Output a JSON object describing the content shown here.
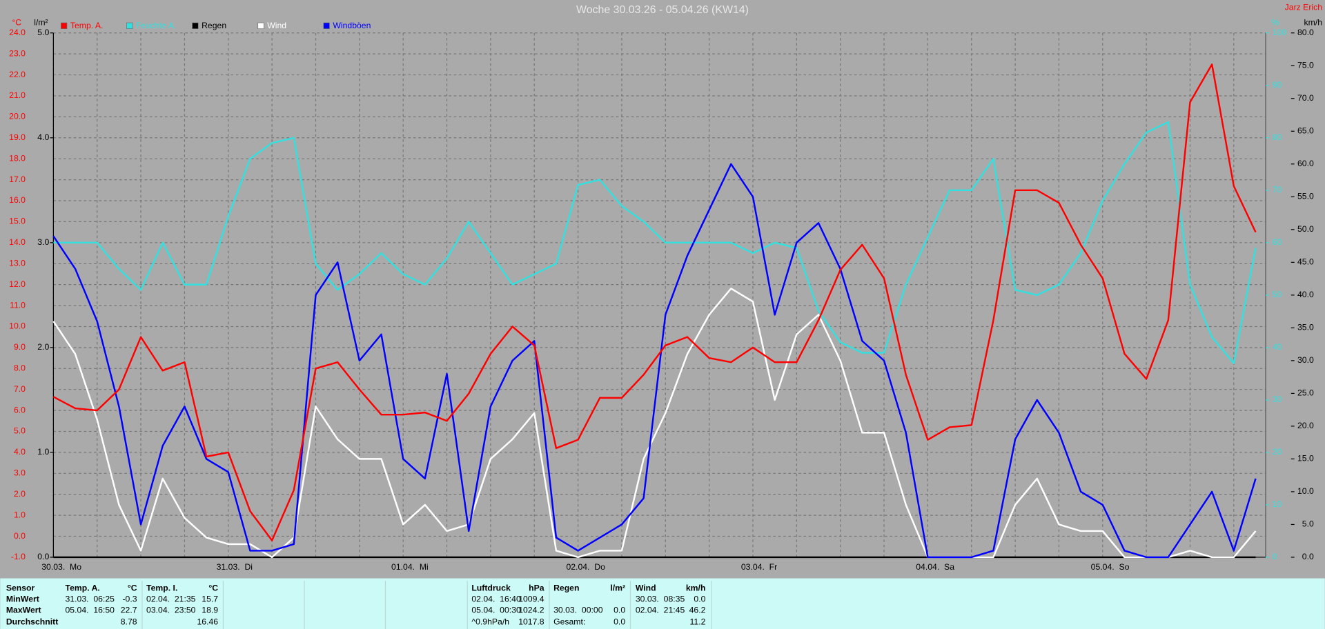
{
  "chart_data": {
    "type": "line",
    "title": "Woche 30.03.26 - 05.04.26 (KW14)",
    "author": "Jarz Erich",
    "y_unit": "°C",
    "y2_unit": "l/m²",
    "y3_unit": "%",
    "y4_unit": "km/h",
    "grid": true,
    "categories": [
      "30.03.  Mo",
      null,
      null,
      null,
      null,
      null,
      null,
      null,
      "31.03.  Di",
      null,
      null,
      null,
      null,
      null,
      null,
      null,
      "01.04.  Mi",
      null,
      null,
      null,
      null,
      null,
      null,
      null,
      "02.04.  Do",
      null,
      null,
      null,
      null,
      null,
      null,
      null,
      "03.04.  Fr",
      null,
      null,
      null,
      null,
      null,
      null,
      null,
      "04.04.  Sa",
      null,
      null,
      null,
      null,
      null,
      null,
      null,
      "05.04.  So",
      null,
      null,
      null,
      null,
      null,
      null,
      null
    ],
    "ylim": [
      -1,
      24
    ],
    "yticks": [
      {
        "value": -1,
        "label": "-1.0"
      },
      {
        "value": 0,
        "label": "0.0"
      },
      {
        "value": 1,
        "label": "1.0"
      },
      {
        "value": 2,
        "label": "2.0"
      },
      {
        "value": 3,
        "label": "3.0"
      },
      {
        "value": 4,
        "label": "4.0"
      },
      {
        "value": 5,
        "label": "5.0"
      },
      {
        "value": 6,
        "label": "6.0"
      },
      {
        "value": 7,
        "label": "7.0"
      },
      {
        "value": 8,
        "label": "8.0"
      },
      {
        "value": 9,
        "label": "9.0"
      },
      {
        "value": 10,
        "label": "10.0"
      },
      {
        "value": 11,
        "label": "11.0"
      },
      {
        "value": 12,
        "label": "12.0"
      },
      {
        "value": 13,
        "label": "13.0"
      },
      {
        "value": 14,
        "label": "14.0"
      },
      {
        "value": 15,
        "label": "15.0"
      },
      {
        "value": 16,
        "label": "16.0"
      },
      {
        "value": 17,
        "label": "17.0"
      },
      {
        "value": 18,
        "label": "18.0"
      },
      {
        "value": 19,
        "label": "19.0"
      },
      {
        "value": 20,
        "label": "20.0"
      },
      {
        "value": 21,
        "label": "21.0"
      },
      {
        "value": 22,
        "label": "22.0"
      },
      {
        "value": 23,
        "label": "23.0"
      },
      {
        "value": 24,
        "label": "24.0"
      }
    ],
    "y2lim": [
      0,
      5
    ],
    "y2ticks": [
      {
        "value": 0,
        "label": "0.0"
      },
      {
        "value": 1,
        "label": "1.0"
      },
      {
        "value": 2,
        "label": "2.0"
      },
      {
        "value": 3,
        "label": "3.0"
      },
      {
        "value": 4,
        "label": "4.0"
      },
      {
        "value": 5,
        "label": "5.0"
      }
    ],
    "y3lim": [
      0,
      100
    ],
    "y3ticks": [
      0,
      10,
      20,
      30,
      40,
      50,
      60,
      70,
      80,
      90,
      100
    ],
    "y4lim": [
      0,
      80
    ],
    "y4ticks": [
      {
        "value": 0,
        "label": "0.0"
      },
      {
        "value": 5,
        "label": "5.0"
      },
      {
        "value": 10,
        "label": "10.0"
      },
      {
        "value": 15,
        "label": "15.0"
      },
      {
        "value": 20,
        "label": "20.0"
      },
      {
        "value": 25,
        "label": "25.0"
      },
      {
        "value": 30,
        "label": "30.0"
      },
      {
        "value": 35,
        "label": "35.0"
      },
      {
        "value": 40,
        "label": "40.0"
      },
      {
        "value": 45,
        "label": "45.0"
      },
      {
        "value": 50,
        "label": "50.0"
      },
      {
        "value": 55,
        "label": "55.0"
      },
      {
        "value": 60,
        "label": "60.0"
      },
      {
        "value": 65,
        "label": "65.0"
      },
      {
        "value": 70,
        "label": "70.0"
      },
      {
        "value": 75,
        "label": "75.0"
      },
      {
        "value": 80,
        "label": "80.0"
      }
    ],
    "series": [
      {
        "name": "Temp. A.",
        "color": "#ff0000",
        "axis": "y",
        "values": [
          6.65,
          6.1,
          6.0,
          7.0,
          9.5,
          7.9,
          8.3,
          3.8,
          4.0,
          1.2,
          -0.2,
          2.2,
          8.0,
          8.3,
          7.0,
          5.8,
          5.8,
          5.9,
          5.5,
          6.8,
          8.7,
          10.0,
          9.1,
          4.2,
          4.6,
          6.6,
          6.6,
          7.7,
          9.1,
          9.5,
          8.5,
          8.3,
          9.0,
          8.3,
          8.3,
          10.3,
          12.7,
          13.9,
          12.3,
          7.7,
          4.6,
          5.2,
          5.3,
          10.3,
          16.5,
          16.5,
          15.9,
          13.9,
          12.3,
          8.7,
          7.5,
          10.3,
          20.7,
          22.5,
          16.7,
          14.5
        ]
      },
      {
        "name": "Feuchte A.",
        "color": "#33e0e0",
        "axis": "y3",
        "values": [
          60,
          60,
          60,
          55,
          51,
          60,
          52,
          52,
          65,
          76,
          79,
          80,
          56,
          51,
          54,
          58,
          54,
          52,
          57,
          64,
          58,
          52,
          54,
          56,
          71,
          72,
          67,
          64,
          60,
          60,
          60,
          60,
          58,
          60,
          59,
          47,
          41,
          39,
          39,
          52,
          61,
          70,
          70,
          76,
          51,
          50,
          52,
          58,
          68,
          75,
          81,
          83,
          52,
          42,
          37,
          59
        ]
      },
      {
        "name": "Regen",
        "color": "#000000",
        "axis": "y2",
        "values": [
          0,
          0,
          0,
          0,
          0,
          0,
          0,
          0,
          0,
          0,
          0,
          0,
          0,
          0,
          0,
          0,
          0,
          0,
          0,
          0,
          0,
          0,
          0,
          0,
          0,
          0,
          0,
          0,
          0,
          0,
          0,
          0,
          0,
          0,
          0,
          0,
          0,
          0,
          0,
          0,
          0,
          0,
          0,
          0,
          0,
          0,
          0,
          0,
          0,
          0,
          0,
          0,
          0,
          0,
          0,
          0
        ]
      },
      {
        "name": "Wind",
        "color": "#ffffff",
        "axis": "y4",
        "values": [
          36,
          31,
          21,
          8,
          1,
          12,
          6,
          3,
          2,
          2,
          0,
          3,
          23,
          18,
          15,
          15,
          5,
          8,
          4,
          5,
          15,
          18,
          22,
          1,
          0,
          1,
          1,
          15,
          22,
          31,
          37,
          41,
          39,
          24,
          34,
          37,
          30,
          19,
          19,
          8,
          0,
          0,
          0,
          0,
          8,
          12,
          5,
          4,
          4,
          0,
          0,
          0,
          1,
          0,
          0,
          4
        ]
      },
      {
        "name": "Windböen",
        "color": "#0000ff",
        "axis": "y4",
        "values": [
          49,
          44,
          36,
          23,
          5,
          17,
          23,
          15,
          13,
          1,
          1,
          2,
          40,
          45,
          30,
          34,
          15,
          12,
          28,
          4,
          23,
          30,
          33,
          3,
          1,
          3,
          5,
          9,
          37,
          46,
          53,
          60,
          55,
          37,
          48,
          51,
          44,
          33,
          30,
          19,
          0,
          0,
          0,
          1,
          18,
          24,
          19,
          10,
          8,
          1,
          0,
          0,
          5,
          10,
          1,
          12
        ]
      }
    ]
  },
  "stats": {
    "row_header": "Sensor",
    "columns": [
      {
        "name": "Temp. A.",
        "unit": "°C"
      },
      {
        "name": "Temp. I.",
        "unit": "°C"
      },
      {
        "name": "Luftdruck",
        "unit": "hPa"
      },
      {
        "name": "Regen",
        "unit": "l/m²"
      },
      {
        "name": "Wind",
        "unit": "km/h"
      }
    ],
    "rows": [
      {
        "label": "MinWert",
        "cells": [
          {
            "time": "31.03.  06:25",
            "value": "-0.3"
          },
          {
            "time": "02.04.  21:35",
            "value": "15.7"
          },
          {
            "time": "02.04.  16:40",
            "value": "1009.4"
          },
          null,
          {
            "time": "30.03.  08:35",
            "value": "0.0"
          }
        ]
      },
      {
        "label": "MaxWert",
        "cells": [
          {
            "time": "05.04.  16:50",
            "value": "22.7"
          },
          {
            "time": "03.04.  23:50",
            "value": "18.9"
          },
          {
            "time": "05.04.  00:30",
            "value": "1024.2"
          },
          {
            "time": "30.03.  00:00",
            "value": "0.0"
          },
          {
            "time": "02.04.  21:45",
            "value": "46.2"
          }
        ]
      },
      {
        "label": "Durchschnitt",
        "cells": [
          {
            "value": "8.78"
          },
          {
            "value": "16.46"
          },
          {
            "time": "^0.9hPa/h",
            "value": "1017.8"
          },
          {
            "time": "Gesamt:",
            "value": "0.0"
          },
          {
            "value": "11.2"
          }
        ]
      }
    ]
  }
}
